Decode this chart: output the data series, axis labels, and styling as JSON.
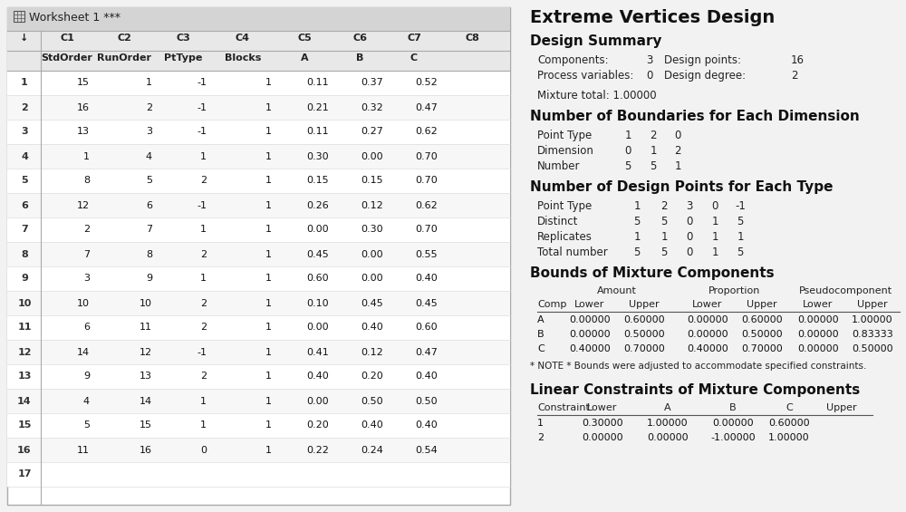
{
  "worksheet_title": "Worksheet 1 ***",
  "col_headers": [
    "↓",
    "C1",
    "C2",
    "C3",
    "C4",
    "C5",
    "C6",
    "C7",
    "C8"
  ],
  "col_sub_headers": [
    "",
    "StdOrder",
    "RunOrder",
    "PtType",
    "Blocks",
    "A",
    "B",
    "C",
    ""
  ],
  "table_data": [
    [
      "1",
      "15",
      "1",
      "-1",
      "1",
      "0.11",
      "0.37",
      "0.52"
    ],
    [
      "2",
      "16",
      "2",
      "-1",
      "1",
      "0.21",
      "0.32",
      "0.47"
    ],
    [
      "3",
      "13",
      "3",
      "-1",
      "1",
      "0.11",
      "0.27",
      "0.62"
    ],
    [
      "4",
      "1",
      "4",
      "1",
      "1",
      "0.30",
      "0.00",
      "0.70"
    ],
    [
      "5",
      "8",
      "5",
      "2",
      "1",
      "0.15",
      "0.15",
      "0.70"
    ],
    [
      "6",
      "12",
      "6",
      "-1",
      "1",
      "0.26",
      "0.12",
      "0.62"
    ],
    [
      "7",
      "2",
      "7",
      "1",
      "1",
      "0.00",
      "0.30",
      "0.70"
    ],
    [
      "8",
      "7",
      "8",
      "2",
      "1",
      "0.45",
      "0.00",
      "0.55"
    ],
    [
      "9",
      "3",
      "9",
      "1",
      "1",
      "0.60",
      "0.00",
      "0.40"
    ],
    [
      "10",
      "10",
      "10",
      "2",
      "1",
      "0.10",
      "0.45",
      "0.45"
    ],
    [
      "11",
      "6",
      "11",
      "2",
      "1",
      "0.00",
      "0.40",
      "0.60"
    ],
    [
      "12",
      "14",
      "12",
      "-1",
      "1",
      "0.41",
      "0.12",
      "0.47"
    ],
    [
      "13",
      "9",
      "13",
      "2",
      "1",
      "0.40",
      "0.20",
      "0.40"
    ],
    [
      "14",
      "4",
      "14",
      "1",
      "1",
      "0.00",
      "0.50",
      "0.50"
    ],
    [
      "15",
      "5",
      "15",
      "1",
      "1",
      "0.20",
      "0.40",
      "0.40"
    ],
    [
      "16",
      "11",
      "16",
      "0",
      "1",
      "0.22",
      "0.24",
      "0.54"
    ],
    [
      "17",
      "",
      "",
      "",
      "",
      "",
      "",
      ""
    ]
  ],
  "main_title": "Extreme Vertices Design",
  "design_summary_title": "Design Summary",
  "ds_line1_labels": [
    "Components:",
    "3",
    "Design points:",
    "16"
  ],
  "ds_line2_labels": [
    "Process variables:",
    "0",
    "Design degree:",
    "2"
  ],
  "mixture_total": "Mixture total: 1.00000",
  "boundaries_title": "Number of Boundaries for Each Dimension",
  "boundaries_rows": [
    [
      "Point Type",
      "1",
      "2",
      "0"
    ],
    [
      "Dimension",
      "0",
      "1",
      "2"
    ],
    [
      "Number",
      "5",
      "5",
      "1"
    ]
  ],
  "design_points_title": "Number of Design Points for Each Type",
  "design_points_rows": [
    [
      "Point Type",
      "1",
      "2",
      "3",
      "0",
      "-1"
    ],
    [
      "Distinct",
      "5",
      "5",
      "0",
      "1",
      "5"
    ],
    [
      "Replicates",
      "1",
      "1",
      "0",
      "1",
      "1"
    ],
    [
      "Total number",
      "5",
      "5",
      "0",
      "1",
      "5"
    ]
  ],
  "bounds_title": "Bounds of Mixture Components",
  "bounds_grp_headers": [
    "Amount",
    "Proportion",
    "Pseudocomponent"
  ],
  "bounds_col_headers": [
    "Comp",
    "Lower",
    "Upper",
    "Lower",
    "Upper",
    "Lower",
    "Upper"
  ],
  "bounds_data": [
    [
      "A",
      "0.00000",
      "0.60000",
      "0.00000",
      "0.60000",
      "0.00000",
      "1.00000"
    ],
    [
      "B",
      "0.00000",
      "0.50000",
      "0.00000",
      "0.50000",
      "0.00000",
      "0.83333"
    ],
    [
      "C",
      "0.40000",
      "0.70000",
      "0.40000",
      "0.70000",
      "0.00000",
      "0.50000"
    ]
  ],
  "bounds_note": "* NOTE * Bounds were adjusted to accommodate specified constraints.",
  "constraints_title": "Linear Constraints of Mixture Components",
  "constraints_col_headers": [
    "Constraint",
    "Lower",
    "A",
    "B",
    "C",
    "Upper"
  ],
  "constraints_data": [
    [
      "1",
      "0.30000",
      "1.00000",
      "0.00000",
      "0.60000",
      ""
    ],
    [
      "2",
      "0.00000",
      "0.00000",
      "-1.00000",
      "1.00000",
      ""
    ]
  ],
  "bg_color": "#f2f2f2",
  "panel_bg": "#ffffff",
  "title_bar_bg": "#d4d4d4",
  "header_bg": "#e8e8e8",
  "row_alt_bg": "#f7f7f7",
  "border_color": "#aaaaaa",
  "text_dark": "#111111",
  "text_mid": "#333333"
}
